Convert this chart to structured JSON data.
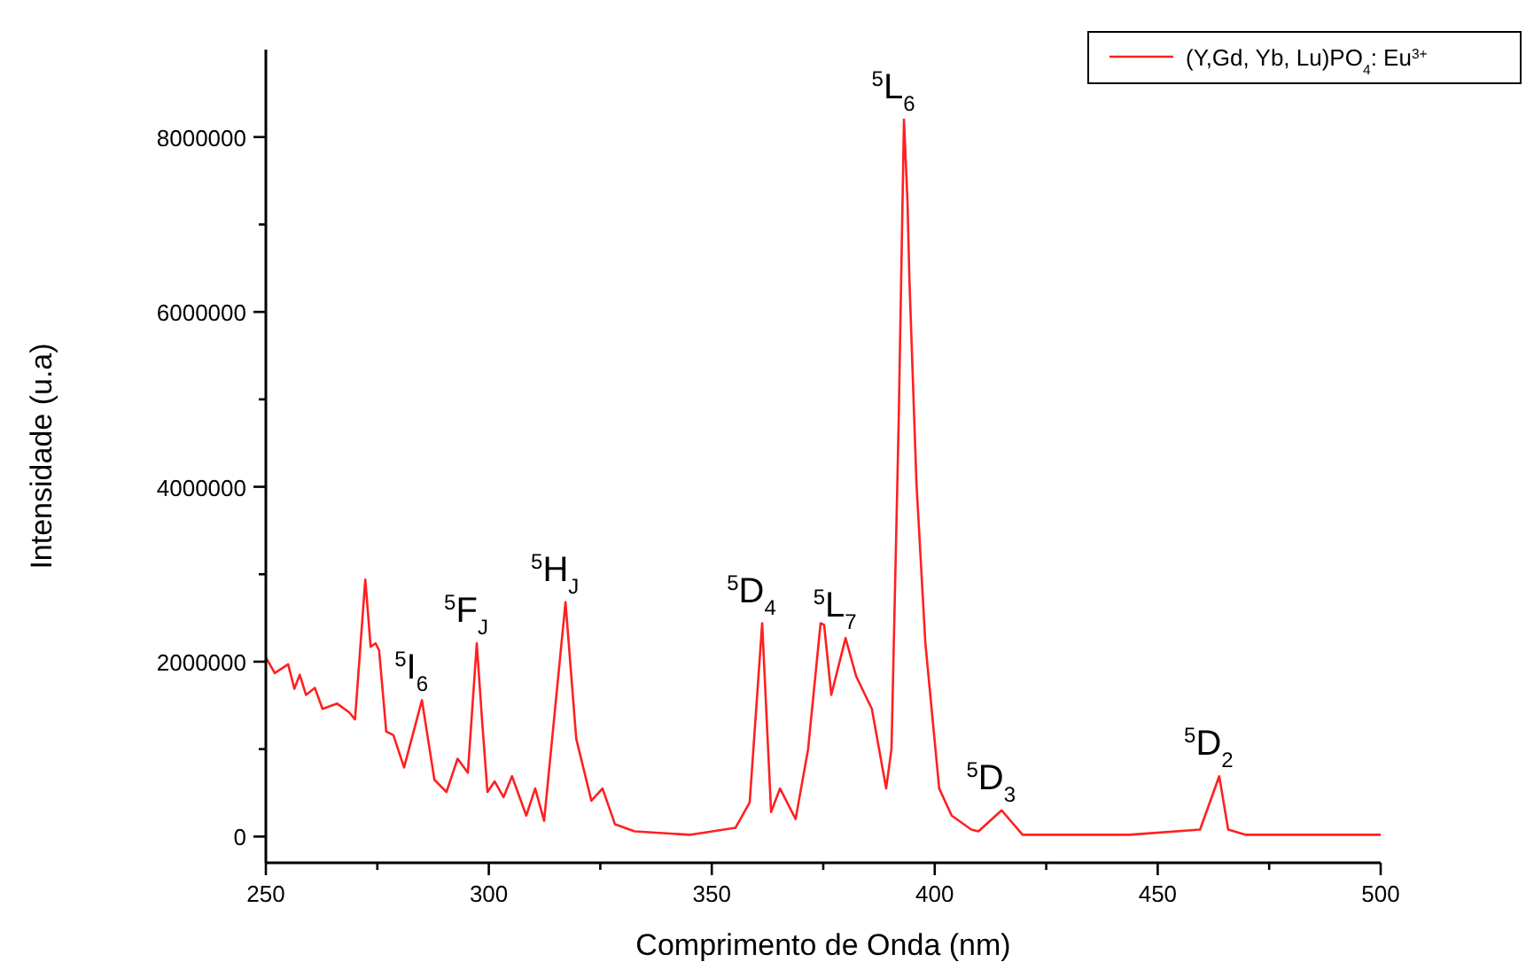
{
  "chart_data": {
    "type": "line",
    "xlabel": "Comprimento de Onda (nm)",
    "ylabel": "Intensidade (u.a)",
    "xlim": [
      250,
      500
    ],
    "ylim": [
      -300000,
      9000000
    ],
    "xticks": [
      250,
      {
        "value": 275,
        "label": null
      },
      300,
      {
        "value": 325,
        "label": null
      },
      350,
      {
        "value": 375,
        "label": null
      },
      400,
      {
        "value": 425,
        "label": null
      },
      450,
      {
        "value": 475,
        "label": null
      },
      500
    ],
    "yticks": [
      0,
      {
        "value": 1000000,
        "label": null
      },
      2000000,
      {
        "value": 3000000,
        "label": null
      },
      4000000,
      {
        "value": 5000000,
        "label": null
      },
      6000000,
      {
        "value": 7000000,
        "label": null
      },
      8000000
    ],
    "legend": "top right",
    "grid": false,
    "marker": "none",
    "line_style": "solid",
    "series": [
      {
        "name": "(Y,Gd, Yb, Lu)PO$_{4}$: Eu$^{3+}$",
        "color": "#ff2020",
        "x": [
          250,
          252,
          255,
          256.4,
          257.6,
          259,
          261,
          262.7,
          266,
          268.7,
          270,
          272.3,
          273.5,
          274.6,
          275.4,
          277,
          278.6,
          281,
          285,
          287.8,
          290.5,
          293,
          295.3,
          297.3,
          298.5,
          299.7,
          301.3,
          303.3,
          305.2,
          308.4,
          310.4,
          312.4,
          317.2,
          319.6,
          323,
          325.5,
          328.3,
          332.7,
          345,
          355.3,
          358.5,
          361.3,
          363.3,
          365.3,
          368.8,
          371.6,
          374.4,
          375.2,
          376.8,
          380,
          382.4,
          385.9,
          389.1,
          390.3,
          391.9,
          393.1,
          393.9,
          394.3,
          395.9,
          397.9,
          401,
          403.8,
          408.2,
          409.8,
          415,
          419.7,
          443.6,
          459.5,
          463.8,
          465.8,
          469.8,
          500
        ],
        "values": [
          2050000,
          1870000,
          1970000,
          1690000,
          1850000,
          1620000,
          1700000,
          1460000,
          1520000,
          1420000,
          1340000,
          2940000,
          2170000,
          2210000,
          2130000,
          1200000,
          1160000,
          790000,
          1560000,
          650000,
          510000,
          890000,
          730000,
          2210000,
          1320000,
          510000,
          630000,
          450000,
          690000,
          240000,
          550000,
          180000,
          2680000,
          1120000,
          410000,
          550000,
          140000,
          60000,
          20000,
          100000,
          390000,
          2440000,
          280000,
          550000,
          200000,
          1000000,
          2440000,
          2420000,
          1620000,
          2270000,
          1830000,
          1460000,
          550000,
          1000000,
          4710000,
          8200000,
          7250000,
          6400000,
          4040000,
          2210000,
          550000,
          240000,
          80000,
          60000,
          300000,
          20000,
          20000,
          80000,
          690000,
          80000,
          20000,
          20000
        ]
      }
    ],
    "annotations": [
      {
        "text": "$^{5}$I$_{6}$",
        "x": 285,
        "y": 1560000
      },
      {
        "text": "$^{5}$F$_{J}$",
        "x": 297.3,
        "y": 2210000
      },
      {
        "text": "$^{5}$H$_{J}$",
        "x": 317.2,
        "y": 2680000
      },
      {
        "text": "$^{5}$D$_{4}$",
        "x": 361.3,
        "y": 2440000
      },
      {
        "text": "$^{5}$L$_{7}$",
        "x": 380,
        "y": 2270000
      },
      {
        "text": "$^{5}$L$_{6}$",
        "x": 393.1,
        "y": 8200000
      },
      {
        "text": "$^{5}$D$_{3}$",
        "x": 415,
        "y": 300000
      },
      {
        "text": "$^{5}$D$_{2}$",
        "x": 463.8,
        "y": 690000
      }
    ]
  }
}
